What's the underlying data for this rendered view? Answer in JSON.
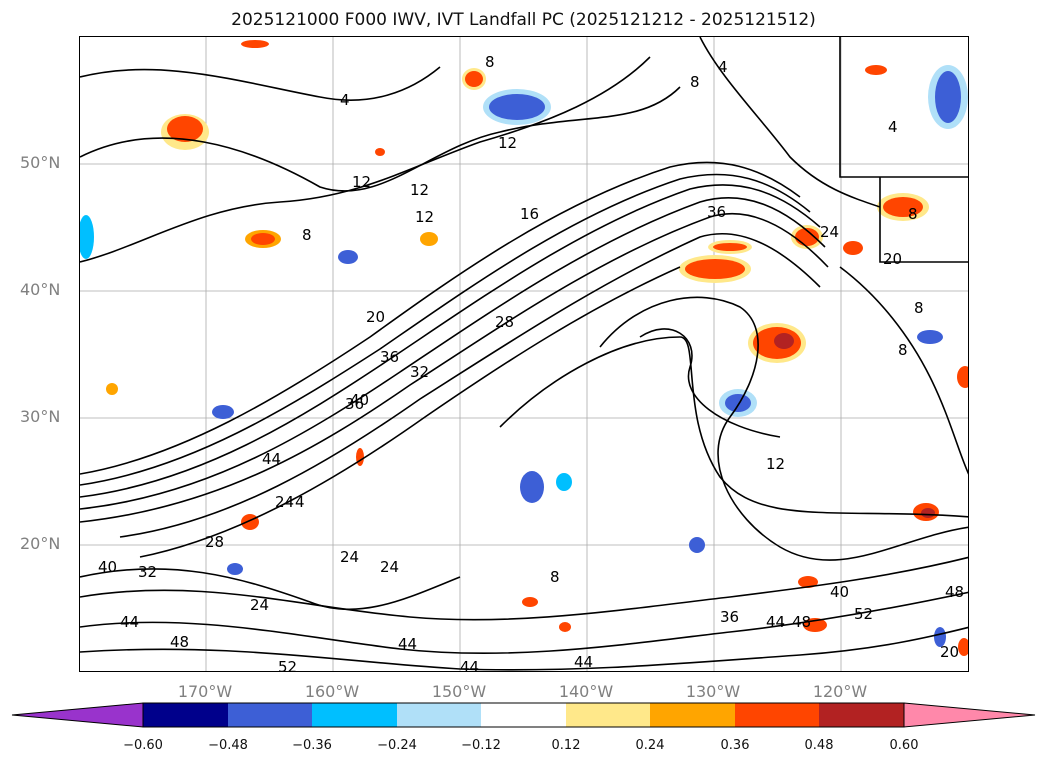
{
  "title": "2025121000 F000 IWV, IVT Landfall PC (2025121212 - 2025121512)",
  "lat_labels": [
    "50°N",
    "40°N",
    "30°N",
    "20°N"
  ],
  "lon_labels": [
    "170°W",
    "160°W",
    "150°W",
    "140°W",
    "130°W",
    "120°W"
  ],
  "colorbar": {
    "tick_labels": [
      "−0.60",
      "−0.48",
      "−0.36",
      "−0.24",
      "−0.12",
      "0.12",
      "0.24",
      "0.36",
      "0.48",
      "0.60"
    ],
    "bin_colors": [
      "#9933cc",
      "#00008b",
      "#3d5fd6",
      "#00bfff",
      "#b0e0f8",
      "#ffffff",
      "#ffe88a",
      "#ffa500",
      "#ff4500",
      "#b22222",
      "#ff88aa"
    ]
  },
  "contour_labels": [
    "4",
    "4",
    "4",
    "8",
    "8",
    "8",
    "8",
    "8",
    "8",
    "8",
    "12",
    "12",
    "12",
    "12",
    "16",
    "20",
    "20",
    "20",
    "24",
    "24",
    "24",
    "24",
    "24",
    "28",
    "28",
    "36",
    "36",
    "36",
    "32",
    "32",
    "40",
    "40",
    "44",
    "44",
    "44",
    "44",
    "44",
    "44",
    "48",
    "48",
    "48",
    "52",
    "52",
    "4",
    "12",
    "36",
    "40"
  ]
}
